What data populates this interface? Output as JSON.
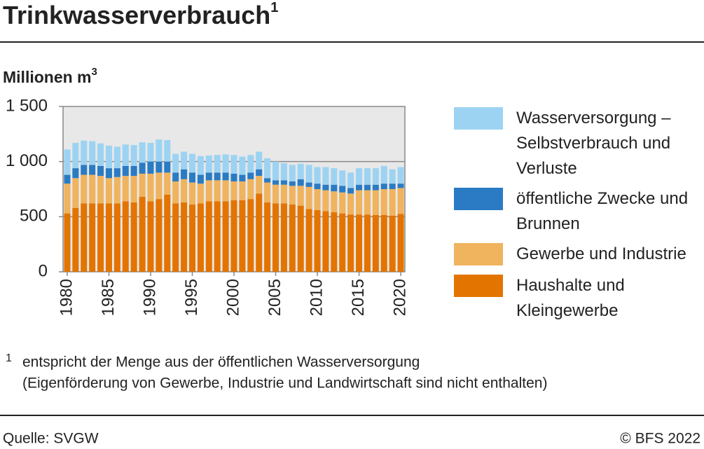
{
  "chart_data": {
    "type": "stacked_bar",
    "title": "Trinkwasserverbrauch",
    "title_footnote_mark": "1",
    "y_label": "Millionen m",
    "y_label_sup": "3",
    "x": [
      1980,
      1981,
      1982,
      1983,
      1984,
      1985,
      1986,
      1987,
      1988,
      1989,
      1990,
      1991,
      1992,
      1993,
      1994,
      1995,
      1996,
      1997,
      1998,
      1999,
      2000,
      2001,
      2002,
      2003,
      2004,
      2005,
      2006,
      2007,
      2008,
      2009,
      2010,
      2011,
      2012,
      2013,
      2014,
      2015,
      2016,
      2017,
      2018,
      2019,
      2020
    ],
    "xlim": [
      1979.5,
      2020.5
    ],
    "xticks": [
      1980,
      1985,
      1990,
      1995,
      2000,
      2005,
      2010,
      2015,
      2020
    ],
    "ylim": [
      0,
      1500
    ],
    "yticks": [
      0,
      500,
      {
        "value": 1000,
        "label": "1 000"
      },
      {
        "value": 1500,
        "label": "1 500"
      }
    ],
    "grid": true,
    "series": [
      {
        "name": "Wasserversorgung – Selbstverbrauch und Verluste",
        "color": "#9dd3f2",
        "values": [
          230,
          230,
          220,
          215,
          205,
          205,
          195,
          195,
          190,
          185,
          170,
          200,
          195,
          170,
          160,
          170,
          170,
          155,
          160,
          165,
          170,
          165,
          160,
          160,
          180,
          170,
          155,
          150,
          140,
          160,
          150,
          160,
          150,
          140,
          140,
          150,
          150,
          150,
          160,
          130,
          150
        ]
      },
      {
        "name": "öffentliche Zwecke und Brunnen",
        "color": "#2a7bc4",
        "values": [
          80,
          90,
          90,
          90,
          90,
          90,
          80,
          90,
          90,
          100,
          110,
          100,
          100,
          80,
          90,
          90,
          80,
          70,
          70,
          70,
          70,
          60,
          60,
          60,
          40,
          40,
          40,
          40,
          60,
          40,
          50,
          50,
          60,
          60,
          50,
          50,
          50,
          50,
          50,
          50,
          40
        ]
      },
      {
        "name": "Gewerbe und Industrie",
        "color": "#f0b35e",
        "values": [
          270,
          270,
          260,
          260,
          250,
          230,
          240,
          230,
          240,
          210,
          250,
          240,
          200,
          200,
          210,
          200,
          180,
          190,
          190,
          190,
          170,
          170,
          180,
          160,
          180,
          170,
          170,
          170,
          180,
          200,
          190,
          190,
          190,
          190,
          190,
          220,
          220,
          225,
          235,
          240,
          235
        ]
      },
      {
        "name": "Haushalte und Kleingewerbe",
        "color": "#e37400",
        "values": [
          530,
          580,
          620,
          620,
          620,
          620,
          620,
          640,
          630,
          680,
          640,
          660,
          700,
          620,
          630,
          610,
          620,
          640,
          640,
          640,
          650,
          650,
          660,
          710,
          630,
          620,
          620,
          610,
          600,
          570,
          560,
          550,
          540,
          530,
          520,
          520,
          520,
          515,
          515,
          510,
          525
        ]
      }
    ]
  },
  "footnote": {
    "marker": "1",
    "lines": [
      "entspricht der Menge aus der öffentlichen Wasserversorgung",
      "(Eigenförderung von Gewerbe, Industrie und Landwirtschaft sind nicht enthalten)"
    ]
  },
  "source": "Quelle: SVGW",
  "copyright": "© BFS 2022"
}
